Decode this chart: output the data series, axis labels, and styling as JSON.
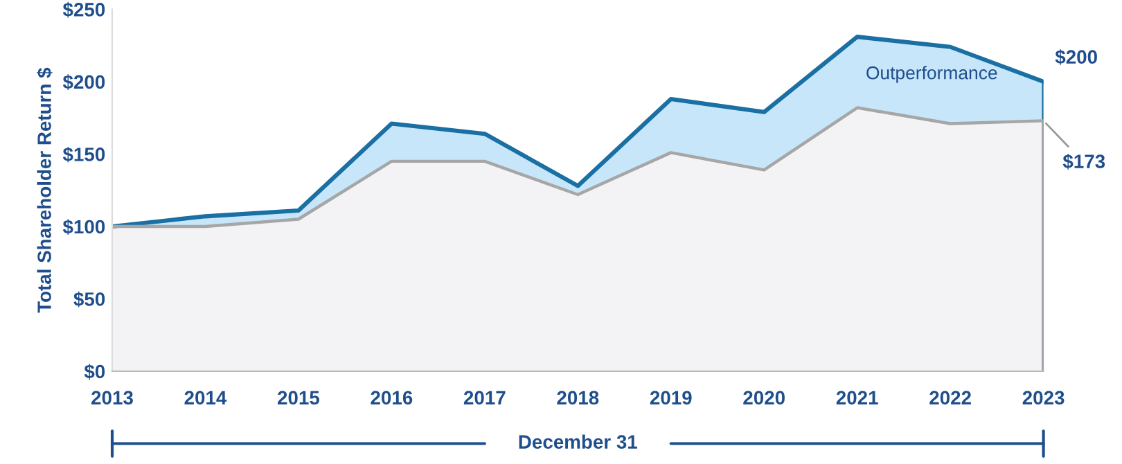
{
  "chart_data": {
    "type": "area",
    "ylabel": "Total Shareholder Return $",
    "xlabel": "December 31",
    "x": [
      2013,
      2014,
      2015,
      2016,
      2017,
      2018,
      2019,
      2020,
      2021,
      2022,
      2023
    ],
    "series": [
      {
        "color": "#1a6fa3",
        "values": [
          100,
          107,
          111,
          171,
          164,
          128,
          188,
          179,
          231,
          224,
          200
        ]
      },
      {
        "color": "#a6a6a6",
        "values": [
          100,
          100,
          105,
          145,
          145,
          122,
          151,
          139,
          182,
          171,
          173
        ]
      }
    ],
    "xlim": [
      2013,
      2023
    ],
    "xticks": [
      2013,
      2014,
      2015,
      2016,
      2017,
      2018,
      2019,
      2020,
      2021,
      2022,
      2023
    ],
    "ylim": [
      0,
      250
    ],
    "yticks": [
      {
        "value": 0,
        "label": "$0"
      },
      {
        "value": 50,
        "label": "$50"
      },
      {
        "value": 100,
        "label": "$100"
      },
      {
        "value": 150,
        "label": "$150"
      },
      {
        "value": 200,
        "label": "$200"
      },
      {
        "value": 250,
        "label": "$250"
      }
    ],
    "annotations": [
      {
        "text": "$200",
        "x": 2023,
        "y": 200
      },
      {
        "text": "$173",
        "x": 2023,
        "y": 173
      },
      "Outperformance"
    ],
    "grid": false
  }
}
